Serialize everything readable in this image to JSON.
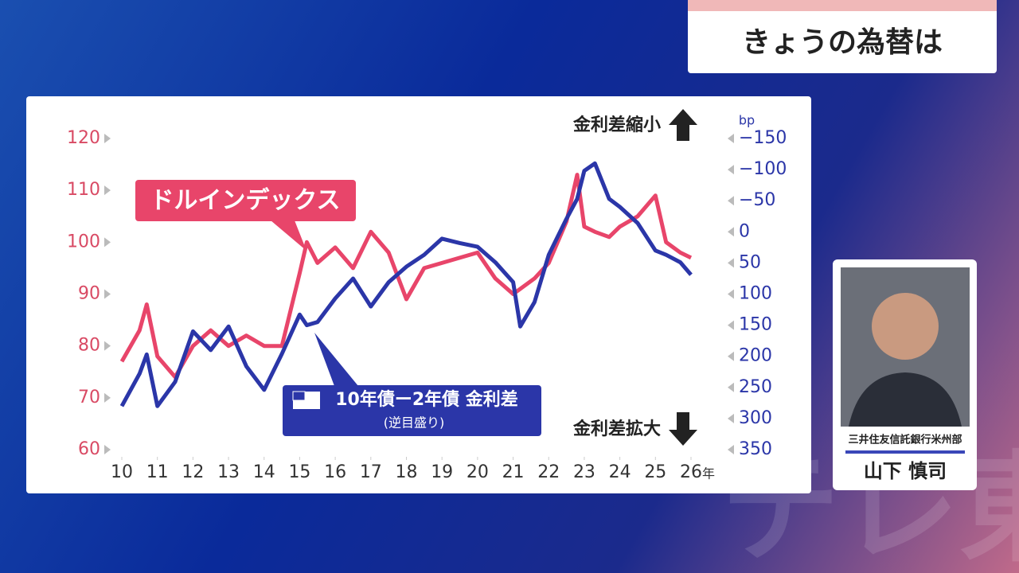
{
  "header": {
    "title": "きょうの為替は"
  },
  "chart_data": {
    "type": "line",
    "x": [
      2010,
      2010.5,
      2010.7,
      2011,
      2011.5,
      2012,
      2012.5,
      2013,
      2013.5,
      2014,
      2014.5,
      2015,
      2015.2,
      2015.5,
      2016,
      2016.5,
      2017,
      2017.5,
      2018,
      2018.5,
      2019,
      2019.5,
      2020,
      2020.5,
      2021,
      2021.2,
      2021.6,
      2022,
      2022.5,
      2022.8,
      2023,
      2023.3,
      2023.7,
      2024,
      2024.5,
      2025,
      2025.3,
      2025.7,
      2026
    ],
    "xlim": [
      2010,
      2026
    ],
    "xticks": [
      {
        "value": 2010,
        "label": "10"
      },
      {
        "value": 2011,
        "label": "11"
      },
      {
        "value": 2012,
        "label": "12"
      },
      {
        "value": 2013,
        "label": "13"
      },
      {
        "value": 2014,
        "label": "14"
      },
      {
        "value": 2015,
        "label": "15"
      },
      {
        "value": 2016,
        "label": "16"
      },
      {
        "value": 2017,
        "label": "17"
      },
      {
        "value": 2018,
        "label": "18"
      },
      {
        "value": 2019,
        "label": "19"
      },
      {
        "value": 2020,
        "label": "20"
      },
      {
        "value": 2021,
        "label": "21"
      },
      {
        "value": 2022,
        "label": "22"
      },
      {
        "value": 2023,
        "label": "23"
      },
      {
        "value": 2024,
        "label": "24"
      },
      {
        "value": 2025,
        "label": "25"
      },
      {
        "value": 2026,
        "label": "26"
      }
    ],
    "x_unit": "年",
    "ylim": [
      60,
      120
    ],
    "yticks": [
      60,
      70,
      80,
      90,
      100,
      110,
      120
    ],
    "y2lim": [
      -150,
      350
    ],
    "y2_inverted": true,
    "y2_label": "bp",
    "y2ticks": [
      {
        "value": -150,
        "label": "−150"
      },
      {
        "value": -100,
        "label": "−100"
      },
      {
        "value": -50,
        "label": "−50"
      },
      0,
      50,
      100,
      150,
      200,
      250,
      300,
      350
    ],
    "series": [
      {
        "name": "ドルインデックス",
        "color": "#e8456a",
        "values": [
          77,
          83,
          88,
          78,
          74,
          80,
          83,
          80,
          82,
          80,
          80,
          94,
          100,
          96,
          99,
          95,
          102,
          98,
          89,
          95,
          96,
          97,
          98,
          93,
          90,
          91,
          93,
          96,
          104,
          113,
          103,
          102,
          101,
          103,
          105,
          109,
          100,
          98,
          97
        ]
      },
      {
        "name": "10年債ー2年債 金利差",
        "note": "(逆目盛り)",
        "color": "#2b36a8",
        "axis": "y2",
        "values": [
          280,
          228,
          197,
          280,
          241,
          160,
          190,
          152,
          216,
          254,
          196,
          133,
          150,
          145,
          107,
          75,
          120,
          81,
          56,
          37,
          11,
          18,
          24,
          49,
          81,
          152,
          113,
          37,
          -21,
          -53,
          -98,
          -110,
          -53,
          -40,
          -14,
          30,
          37,
          49,
          69
        ]
      }
    ],
    "annotations": {
      "top": "金利差縮小",
      "bottom": "金利差拡大"
    }
  },
  "person": {
    "affiliation": "三井住友信託銀行米州部",
    "name": "山下 慎司"
  },
  "watermark": "テレ東"
}
